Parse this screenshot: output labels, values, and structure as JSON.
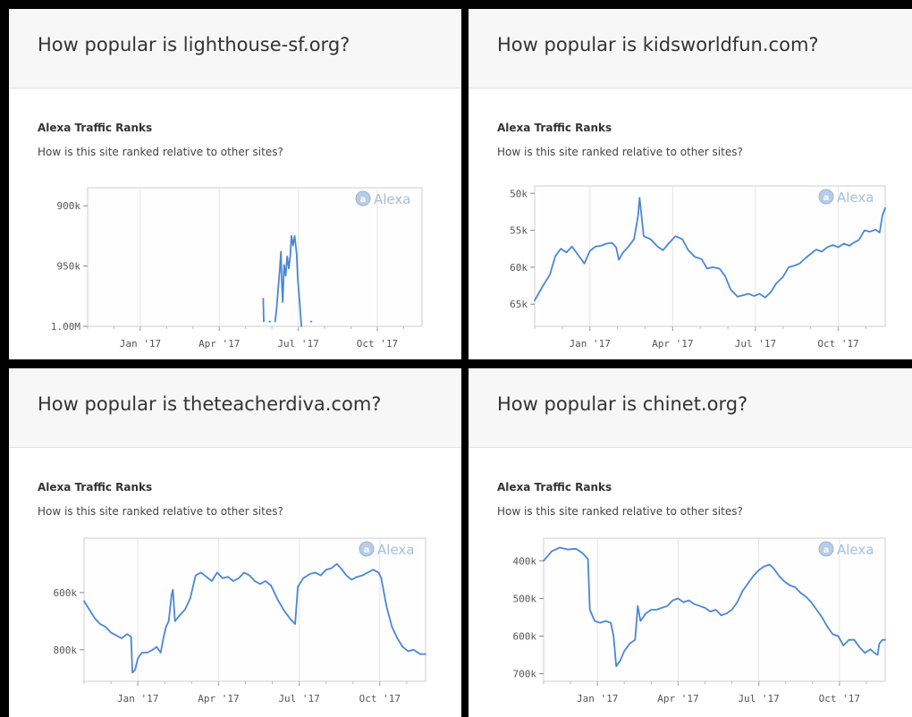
{
  "colors": {
    "line": "#4b86d6",
    "header_bg": "#f7f7f7",
    "divider": "#000000",
    "watermark": "#a6bedc"
  },
  "panels": [
    {
      "title": "How popular is lighthouse-sf.org?",
      "section_title": "Alexa Traffic Ranks",
      "section_subtitle": "How is this site ranked relative to other sites?",
      "watermark": "Alexa"
    },
    {
      "title": "How popular is kidsworldfun.com?",
      "section_title": "Alexa Traffic Ranks",
      "section_subtitle": "How is this site ranked relative to other sites?",
      "watermark": "Alexa"
    },
    {
      "title": "How popular is theteacherdiva.com?",
      "section_title": "Alexa Traffic Ranks",
      "section_subtitle": "How is this site ranked relative to other sites?",
      "watermark": "Alexa"
    },
    {
      "title": "How popular is chinet.org?",
      "section_title": "Alexa Traffic Ranks",
      "section_subtitle": "How is this site ranked relative to other sites?",
      "watermark": "Alexa"
    }
  ],
  "chart_data": [
    {
      "type": "line",
      "title": "",
      "ylim": [
        1000000,
        885000
      ],
      "xlim": [
        0,
        12.7
      ],
      "yticks": [
        900000,
        950000,
        1000000
      ],
      "ytick_labels": [
        "900k",
        "950k",
        "1.00M"
      ],
      "xticks": [
        2,
        5,
        8,
        11
      ],
      "xtick_labels": [
        "Jan '17",
        "Apr '17",
        "Jul '17",
        "Oct '17"
      ],
      "grid": "vertical",
      "segments": [
        [
          [
            6.67,
            977000
          ],
          [
            6.69,
            996000
          ]
        ],
        [
          [
            7.12,
            996000
          ],
          [
            7.18,
            985000
          ],
          [
            7.24,
            968000
          ],
          [
            7.3,
            952000
          ],
          [
            7.34,
            938000
          ],
          [
            7.37,
            960000
          ],
          [
            7.41,
            980000
          ],
          [
            7.46,
            949000
          ],
          [
            7.52,
            958000
          ],
          [
            7.58,
            942000
          ],
          [
            7.64,
            952000
          ],
          [
            7.7,
            940000
          ],
          [
            7.74,
            925000
          ],
          [
            7.8,
            933000
          ],
          [
            7.86,
            925000
          ],
          [
            7.9,
            932000
          ],
          [
            7.94,
            940000
          ],
          [
            7.98,
            960000
          ],
          [
            8.05,
            980000
          ],
          [
            8.12,
            1000000
          ]
        ],
        [
          [
            6.9,
            996000
          ],
          [
            6.93,
            996000
          ]
        ],
        [
          [
            8.48,
            996000
          ],
          [
            8.5,
            996000
          ]
        ]
      ]
    },
    {
      "type": "line",
      "title": "",
      "ylim": [
        68000,
        49000
      ],
      "xlim": [
        0,
        12.7
      ],
      "yticks": [
        50000,
        55000,
        60000,
        65000
      ],
      "ytick_labels": [
        "50k",
        "55k",
        "60k",
        "65k"
      ],
      "xticks": [
        2,
        5,
        8,
        11
      ],
      "xtick_labels": [
        "Jan '17",
        "Apr '17",
        "Jul '17",
        "Oct '17"
      ],
      "grid": "vertical",
      "points": [
        [
          0,
          64500
        ],
        [
          0.3,
          62500
        ],
        [
          0.55,
          61000
        ],
        [
          0.75,
          58500
        ],
        [
          0.95,
          57500
        ],
        [
          1.15,
          58000
        ],
        [
          1.35,
          57200
        ],
        [
          1.55,
          58200
        ],
        [
          1.8,
          59500
        ],
        [
          2.0,
          57800
        ],
        [
          2.2,
          57200
        ],
        [
          2.4,
          57100
        ],
        [
          2.6,
          56800
        ],
        [
          2.8,
          56700
        ],
        [
          2.95,
          57300
        ],
        [
          3.05,
          59000
        ],
        [
          3.2,
          58000
        ],
        [
          3.4,
          57200
        ],
        [
          3.6,
          56200
        ],
        [
          3.75,
          53000
        ],
        [
          3.8,
          50600
        ],
        [
          3.86,
          52600
        ],
        [
          3.95,
          55800
        ],
        [
          4.2,
          56200
        ],
        [
          4.45,
          57200
        ],
        [
          4.65,
          57700
        ],
        [
          4.85,
          56800
        ],
        [
          5.1,
          55800
        ],
        [
          5.35,
          56200
        ],
        [
          5.55,
          57600
        ],
        [
          5.8,
          58600
        ],
        [
          6.05,
          58900
        ],
        [
          6.25,
          60200
        ],
        [
          6.45,
          60000
        ],
        [
          6.7,
          60200
        ],
        [
          6.9,
          61200
        ],
        [
          7.1,
          63000
        ],
        [
          7.35,
          64000
        ],
        [
          7.55,
          63800
        ],
        [
          7.75,
          63600
        ],
        [
          7.95,
          63900
        ],
        [
          8.15,
          63600
        ],
        [
          8.35,
          64100
        ],
        [
          8.55,
          63400
        ],
        [
          8.75,
          62200
        ],
        [
          9.0,
          61300
        ],
        [
          9.2,
          60000
        ],
        [
          9.4,
          59800
        ],
        [
          9.6,
          59500
        ],
        [
          9.8,
          58800
        ],
        [
          10.0,
          58200
        ],
        [
          10.2,
          57600
        ],
        [
          10.4,
          57900
        ],
        [
          10.6,
          57300
        ],
        [
          10.8,
          57000
        ],
        [
          11.0,
          57300
        ],
        [
          11.2,
          56800
        ],
        [
          11.4,
          57100
        ],
        [
          11.55,
          56700
        ],
        [
          11.75,
          56300
        ],
        [
          11.95,
          55000
        ],
        [
          12.15,
          55200
        ],
        [
          12.35,
          54900
        ],
        [
          12.5,
          55300
        ],
        [
          12.6,
          53000
        ],
        [
          12.7,
          52000
        ]
      ]
    },
    {
      "type": "line",
      "title": "",
      "ylim": [
        910000,
        410000
      ],
      "xlim": [
        0,
        12.7
      ],
      "yticks": [
        600000,
        800000
      ],
      "ytick_labels": [
        "600k",
        "800k"
      ],
      "xticks": [
        2,
        5,
        8,
        11
      ],
      "xtick_labels": [
        "Jan '17",
        "Apr '17",
        "Jul '17",
        "Oct '17"
      ],
      "grid": "vertical",
      "points": [
        [
          0,
          630000
        ],
        [
          0.2,
          660000
        ],
        [
          0.4,
          690000
        ],
        [
          0.6,
          710000
        ],
        [
          0.8,
          720000
        ],
        [
          1.0,
          740000
        ],
        [
          1.2,
          750000
        ],
        [
          1.4,
          760000
        ],
        [
          1.6,
          745000
        ],
        [
          1.75,
          755000
        ],
        [
          1.8,
          880000
        ],
        [
          1.9,
          870000
        ],
        [
          2.0,
          830000
        ],
        [
          2.15,
          810000
        ],
        [
          2.35,
          810000
        ],
        [
          2.55,
          800000
        ],
        [
          2.7,
          790000
        ],
        [
          2.85,
          810000
        ],
        [
          2.95,
          760000
        ],
        [
          3.05,
          720000
        ],
        [
          3.15,
          700000
        ],
        [
          3.25,
          610000
        ],
        [
          3.3,
          590000
        ],
        [
          3.38,
          700000
        ],
        [
          3.55,
          680000
        ],
        [
          3.75,
          660000
        ],
        [
          3.95,
          620000
        ],
        [
          4.15,
          540000
        ],
        [
          4.35,
          530000
        ],
        [
          4.55,
          545000
        ],
        [
          4.75,
          560000
        ],
        [
          4.95,
          530000
        ],
        [
          5.15,
          550000
        ],
        [
          5.35,
          545000
        ],
        [
          5.55,
          560000
        ],
        [
          5.75,
          550000
        ],
        [
          5.95,
          530000
        ],
        [
          6.15,
          540000
        ],
        [
          6.35,
          560000
        ],
        [
          6.55,
          570000
        ],
        [
          6.75,
          560000
        ],
        [
          6.95,
          575000
        ],
        [
          7.2,
          625000
        ],
        [
          7.45,
          665000
        ],
        [
          7.65,
          690000
        ],
        [
          7.85,
          710000
        ],
        [
          7.95,
          580000
        ],
        [
          8.15,
          550000
        ],
        [
          8.4,
          535000
        ],
        [
          8.6,
          530000
        ],
        [
          8.8,
          540000
        ],
        [
          9.0,
          520000
        ],
        [
          9.2,
          515000
        ],
        [
          9.4,
          500000
        ],
        [
          9.55,
          515000
        ],
        [
          9.75,
          540000
        ],
        [
          9.95,
          555000
        ],
        [
          10.15,
          545000
        ],
        [
          10.35,
          540000
        ],
        [
          10.55,
          530000
        ],
        [
          10.75,
          520000
        ],
        [
          10.95,
          530000
        ],
        [
          11.05,
          550000
        ],
        [
          11.25,
          650000
        ],
        [
          11.45,
          720000
        ],
        [
          11.65,
          760000
        ],
        [
          11.85,
          790000
        ],
        [
          12.05,
          805000
        ],
        [
          12.25,
          800000
        ],
        [
          12.5,
          815000
        ],
        [
          12.7,
          815000
        ]
      ]
    },
    {
      "type": "line",
      "title": "",
      "ylim": [
        720000,
        340000
      ],
      "xlim": [
        0,
        12.7
      ],
      "yticks": [
        400000,
        500000,
        600000,
        700000
      ],
      "ytick_labels": [
        "400k",
        "500k",
        "600k",
        "700k"
      ],
      "xticks": [
        2,
        5,
        8,
        11
      ],
      "xtick_labels": [
        "Jan '17",
        "Apr '17",
        "Jul '17",
        "Oct '17"
      ],
      "grid": "vertical",
      "points": [
        [
          0,
          400000
        ],
        [
          0.3,
          375000
        ],
        [
          0.6,
          365000
        ],
        [
          0.9,
          370000
        ],
        [
          1.2,
          368000
        ],
        [
          1.45,
          380000
        ],
        [
          1.65,
          395000
        ],
        [
          1.72,
          530000
        ],
        [
          1.9,
          560000
        ],
        [
          2.1,
          565000
        ],
        [
          2.3,
          560000
        ],
        [
          2.5,
          565000
        ],
        [
          2.6,
          600000
        ],
        [
          2.7,
          680000
        ],
        [
          2.85,
          665000
        ],
        [
          3.0,
          640000
        ],
        [
          3.2,
          620000
        ],
        [
          3.4,
          610000
        ],
        [
          3.5,
          520000
        ],
        [
          3.6,
          560000
        ],
        [
          3.8,
          540000
        ],
        [
          4.0,
          530000
        ],
        [
          4.2,
          530000
        ],
        [
          4.4,
          525000
        ],
        [
          4.6,
          520000
        ],
        [
          4.8,
          505000
        ],
        [
          5.0,
          500000
        ],
        [
          5.2,
          510000
        ],
        [
          5.4,
          505000
        ],
        [
          5.6,
          515000
        ],
        [
          5.8,
          520000
        ],
        [
          6.0,
          525000
        ],
        [
          6.2,
          535000
        ],
        [
          6.4,
          530000
        ],
        [
          6.6,
          545000
        ],
        [
          6.8,
          540000
        ],
        [
          7.0,
          530000
        ],
        [
          7.2,
          510000
        ],
        [
          7.4,
          480000
        ],
        [
          7.6,
          460000
        ],
        [
          7.8,
          440000
        ],
        [
          8.0,
          425000
        ],
        [
          8.2,
          415000
        ],
        [
          8.4,
          410000
        ],
        [
          8.55,
          420000
        ],
        [
          8.75,
          440000
        ],
        [
          8.95,
          455000
        ],
        [
          9.15,
          465000
        ],
        [
          9.35,
          470000
        ],
        [
          9.55,
          485000
        ],
        [
          9.75,
          495000
        ],
        [
          9.95,
          510000
        ],
        [
          10.15,
          530000
        ],
        [
          10.35,
          550000
        ],
        [
          10.55,
          575000
        ],
        [
          10.75,
          595000
        ],
        [
          10.95,
          600000
        ],
        [
          11.15,
          625000
        ],
        [
          11.35,
          610000
        ],
        [
          11.55,
          610000
        ],
        [
          11.75,
          630000
        ],
        [
          11.95,
          645000
        ],
        [
          12.15,
          635000
        ],
        [
          12.3,
          645000
        ],
        [
          12.42,
          650000
        ],
        [
          12.48,
          620000
        ],
        [
          12.6,
          610000
        ],
        [
          12.7,
          610000
        ]
      ]
    }
  ]
}
